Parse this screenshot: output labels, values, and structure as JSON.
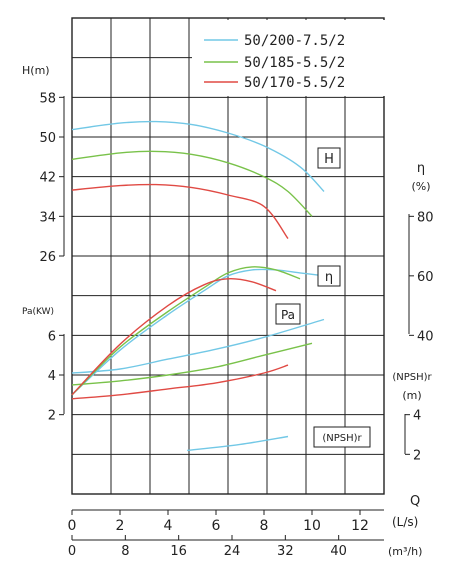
{
  "chart_data": {
    "type": "line",
    "legend_position": "top-right",
    "grid": true,
    "legend": [
      {
        "name": "50/200-7.5/2",
        "color": "#72c8e6"
      },
      {
        "name": "50/185-5.5/2",
        "color": "#79c24a"
      },
      {
        "name": "50/170-5.5/2",
        "color": "#e04a44"
      }
    ],
    "x_axis": {
      "label": "Q",
      "unit": "(L/s)",
      "range": [
        0,
        13
      ],
      "ticks": [
        "0",
        "2",
        "4",
        "6",
        "8",
        "10",
        "12"
      ],
      "secondary_unit": "(m³/h)",
      "secondary_ticks": [
        "0",
        "8",
        "16",
        "24",
        "32",
        "40"
      ]
    },
    "head_axis": {
      "label": "H(m)",
      "range": [
        18,
        58
      ],
      "ticks": [
        "58",
        "50",
        "42",
        "34",
        "26"
      ]
    },
    "power_axis": {
      "label": "Pa(KW)",
      "range": [
        0,
        8
      ],
      "ticks": [
        "6",
        "4",
        "2"
      ]
    },
    "eff_axis": {
      "label": "η",
      "unit": "(%)",
      "range": [
        40,
        80
      ],
      "ticks": [
        "80",
        "60",
        "40"
      ]
    },
    "npsh_axis": {
      "label": "(NPSH)r",
      "unit": "(m)",
      "range": [
        2,
        4
      ],
      "ticks": [
        "4",
        "2"
      ]
    },
    "curve_labels": {
      "H": "H",
      "eta": "η",
      "Pa": "Pa",
      "npsh": "(NPSH)r"
    },
    "series": [
      {
        "name": "50/200-7.5/2",
        "color": "#72c8e6",
        "head": {
          "x": [
            0,
            2,
            3.5,
            5,
            6.5,
            8,
            9.5,
            10.5
          ],
          "y": [
            51.5,
            52.8,
            53.1,
            52.5,
            50.8,
            48.2,
            44,
            39
          ]
        },
        "efficiency": {
          "x": [
            0,
            2,
            4,
            5.5,
            6.5,
            7.5,
            8.5,
            9.5,
            10.5
          ],
          "y": [
            20,
            35,
            47,
            55,
            60,
            62,
            62,
            61,
            60
          ]
        },
        "power": {
          "x": [
            0,
            2,
            4,
            6,
            8,
            10.5
          ],
          "y": [
            4.1,
            4.3,
            4.8,
            5.3,
            5.9,
            6.8
          ]
        },
        "npsh": {
          "x": [
            4.8,
            7,
            9
          ],
          "y": [
            2.2,
            2.5,
            2.9
          ]
        }
      },
      {
        "name": "50/185-5.5/2",
        "color": "#79c24a",
        "head": {
          "x": [
            0,
            2,
            3.5,
            5,
            6.5,
            8,
            9,
            10
          ],
          "y": [
            45.5,
            46.8,
            47.1,
            46.5,
            44.8,
            42,
            39,
            34
          ]
        },
        "efficiency": {
          "x": [
            0,
            2,
            4,
            5.5,
            6.5,
            7.5,
            8.5,
            9.5
          ],
          "y": [
            20,
            36,
            48,
            56,
            61,
            63,
            62,
            59
          ]
        },
        "power": {
          "x": [
            0,
            2,
            4,
            6,
            8,
            10
          ],
          "y": [
            3.5,
            3.7,
            4.0,
            4.4,
            5.0,
            5.6
          ]
        }
      },
      {
        "name": "50/170-5.5/2",
        "color": "#e04a44",
        "head": {
          "x": [
            0,
            2,
            3.5,
            5,
            6.5,
            8,
            9
          ],
          "y": [
            39.3,
            40.2,
            40.4,
            39.8,
            38.3,
            36,
            29.5
          ]
        },
        "efficiency": {
          "x": [
            0,
            2,
            4,
            5.5,
            6.5,
            7.5,
            8.5
          ],
          "y": [
            20,
            37,
            50,
            57,
            59,
            58,
            55
          ]
        },
        "power": {
          "x": [
            0,
            2,
            4,
            6,
            8,
            9
          ],
          "y": [
            2.8,
            3.0,
            3.3,
            3.6,
            4.1,
            4.5
          ]
        }
      }
    ]
  }
}
